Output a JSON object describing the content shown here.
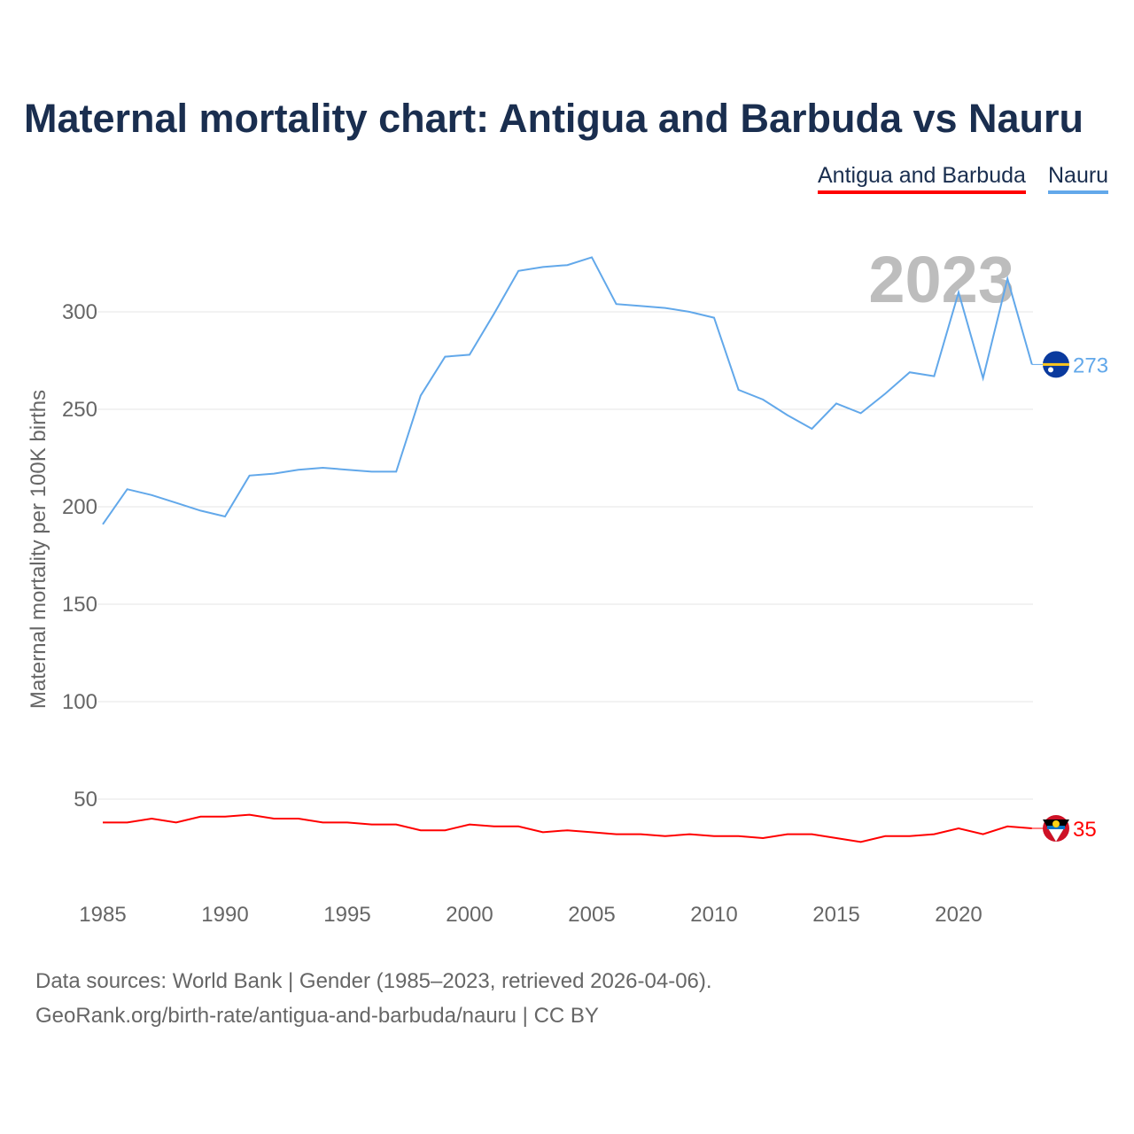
{
  "title": "Maternal mortality chart: Antigua and Barbuda vs Nauru",
  "legend": [
    "Antigua and Barbuda",
    "Nauru"
  ],
  "year_watermark": "2023",
  "source_line1": "Data sources: World Bank | Gender (1985–2023, retrieved 2026-04-06).",
  "source_line2": "GeoRank.org/birth-rate/antigua-and-barbuda/nauru | CC BY",
  "chart_data": {
    "type": "line",
    "title": "Maternal mortality chart: Antigua and Barbuda vs Nauru",
    "xlabel": "",
    "ylabel": "Maternal mortality per 100K births",
    "xlim": [
      1985,
      2023
    ],
    "ylim": [
      0,
      340
    ],
    "xticks": [
      1985,
      1990,
      1995,
      2000,
      2005,
      2010,
      2015,
      2020
    ],
    "yticks": [
      50,
      100,
      150,
      200,
      250,
      300
    ],
    "grid": true,
    "legend_position": "top-right",
    "x": [
      1985,
      1986,
      1987,
      1988,
      1989,
      1990,
      1991,
      1992,
      1993,
      1994,
      1995,
      1996,
      1997,
      1998,
      1999,
      2000,
      2001,
      2002,
      2003,
      2004,
      2005,
      2006,
      2007,
      2008,
      2009,
      2010,
      2011,
      2012,
      2013,
      2014,
      2015,
      2016,
      2017,
      2018,
      2019,
      2020,
      2021,
      2022,
      2023
    ],
    "series": [
      {
        "name": "Antigua and Barbuda",
        "color": "#ff0000",
        "end_label": "35",
        "values": [
          38,
          38,
          40,
          38,
          41,
          41,
          42,
          40,
          40,
          38,
          38,
          37,
          37,
          34,
          34,
          37,
          36,
          36,
          33,
          34,
          33,
          32,
          32,
          31,
          32,
          31,
          31,
          30,
          32,
          32,
          30,
          28,
          31,
          31,
          32,
          35,
          32,
          36,
          35
        ]
      },
      {
        "name": "Nauru",
        "color": "#62a8ea",
        "end_label": "273",
        "values": [
          191,
          209,
          206,
          202,
          198,
          195,
          216,
          217,
          219,
          220,
          219,
          218,
          218,
          257,
          277,
          278,
          299,
          321,
          323,
          324,
          328,
          304,
          303,
          302,
          300,
          297,
          260,
          255,
          247,
          240,
          253,
          248,
          258,
          269,
          267,
          310,
          266,
          317,
          273
        ]
      }
    ]
  }
}
